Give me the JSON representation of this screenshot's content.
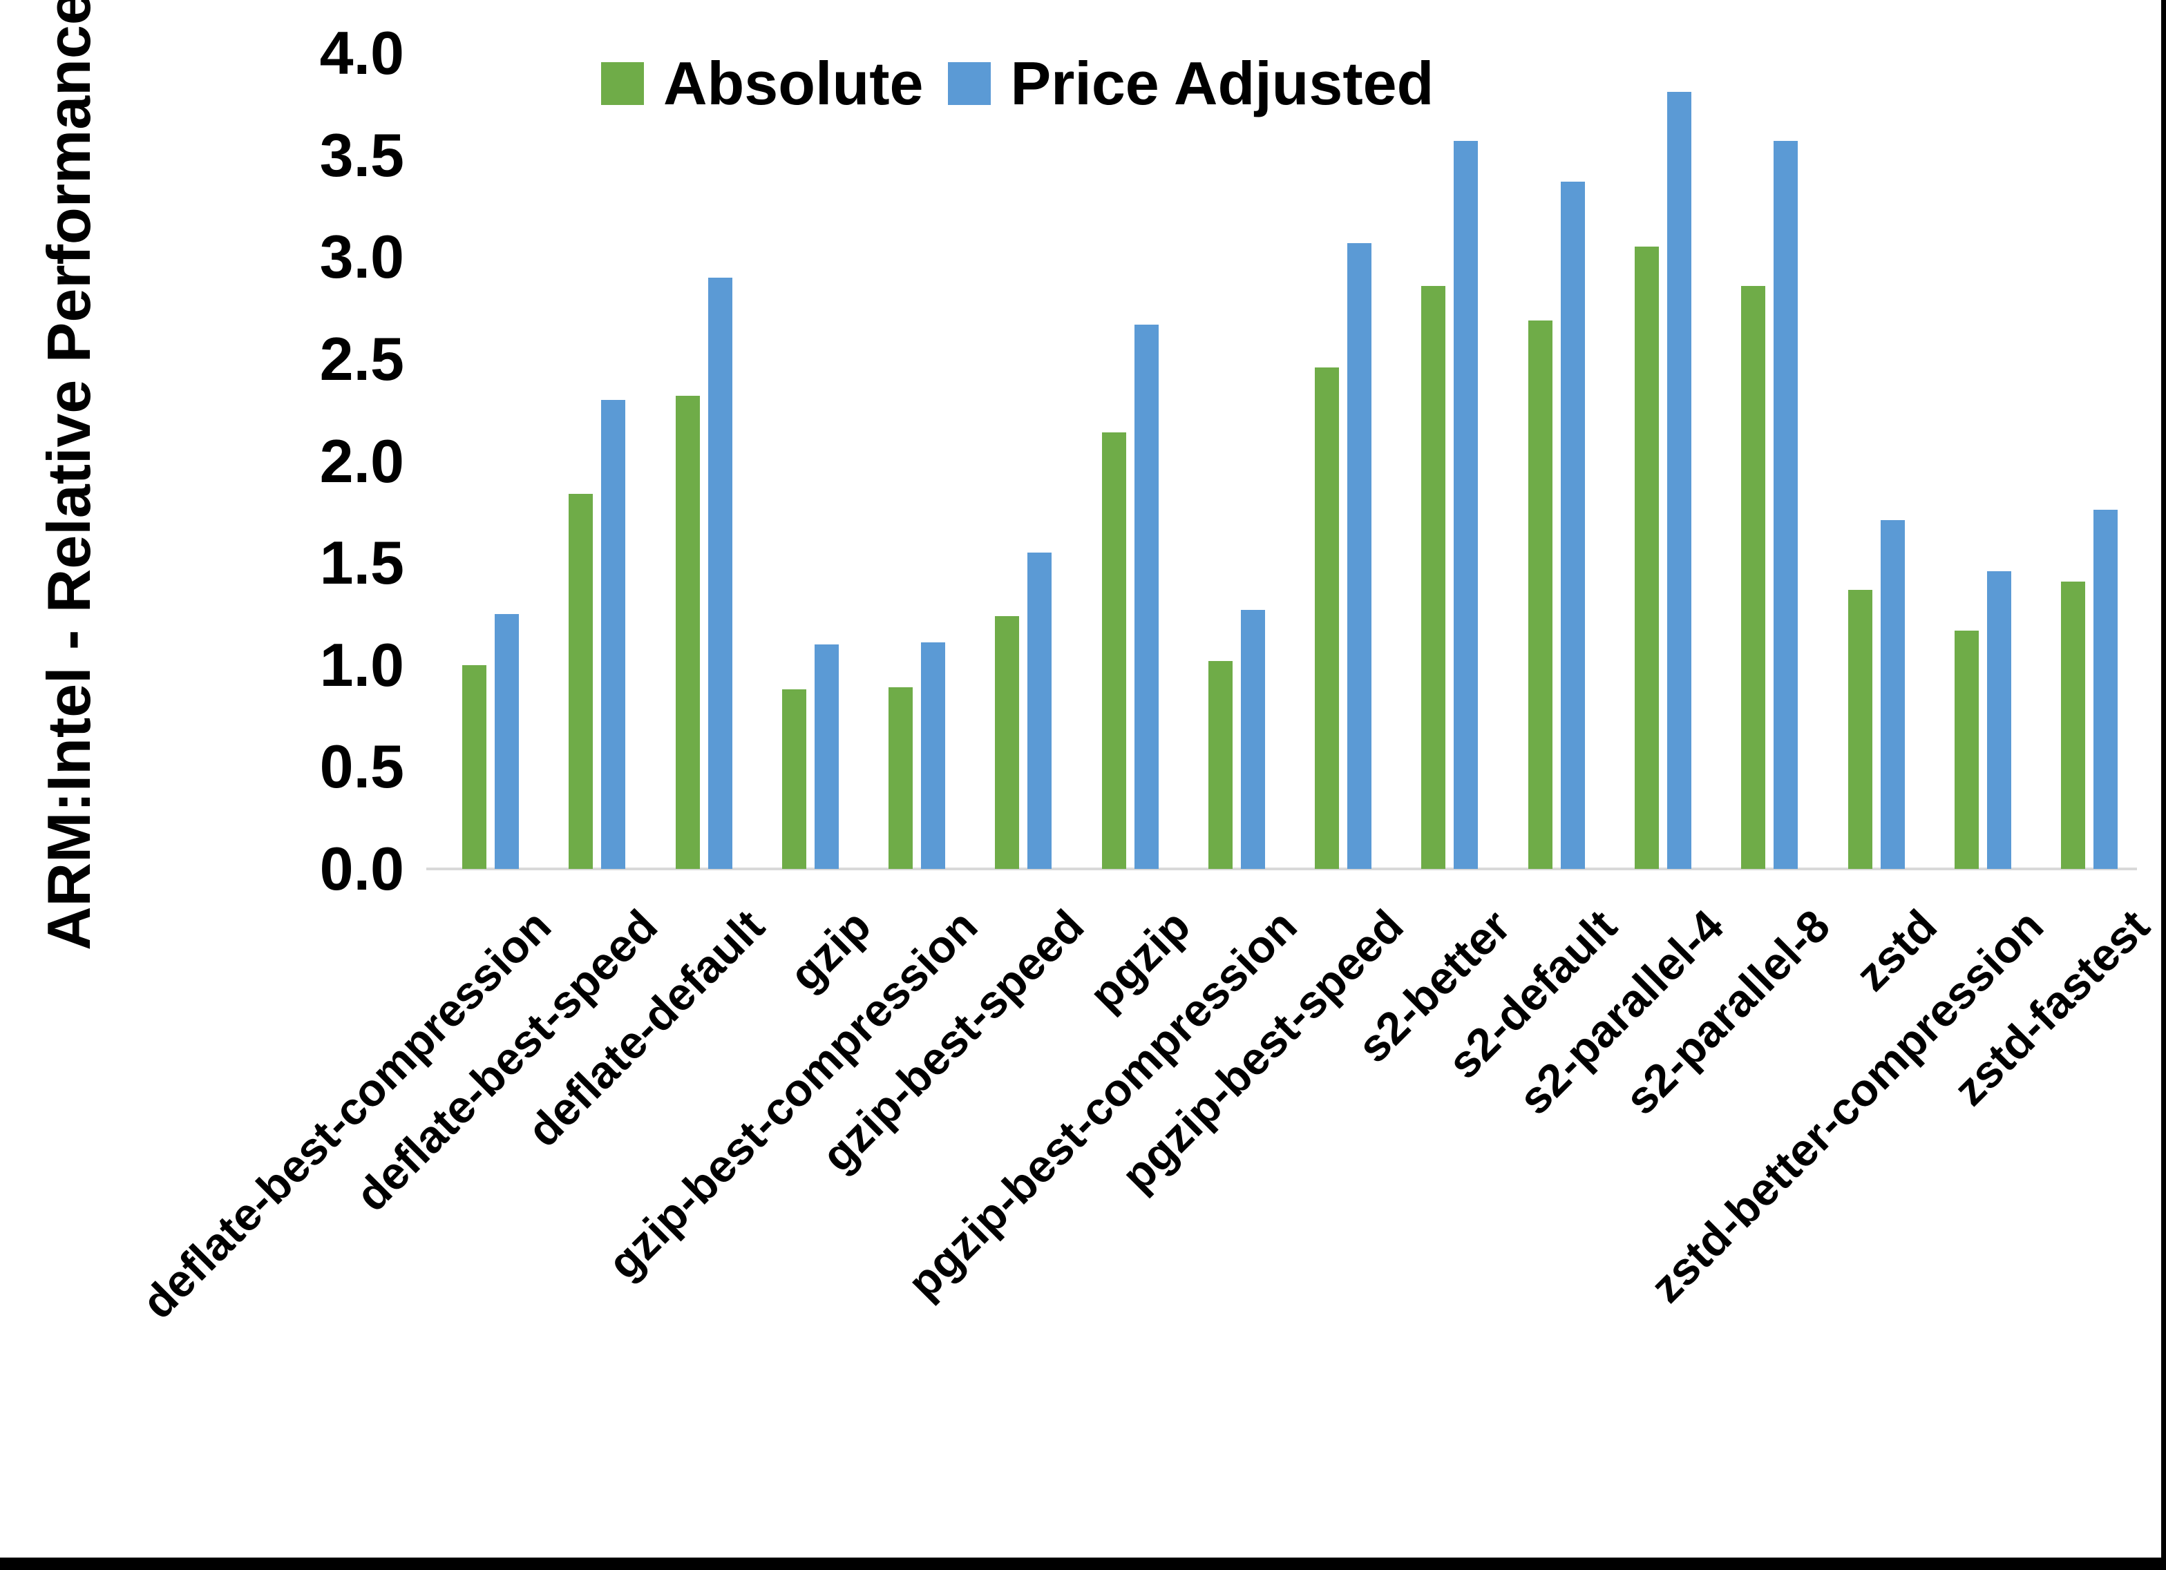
{
  "chart_data": {
    "type": "bar",
    "title": "",
    "ylabel": "ARM:Intel - Relative Performance",
    "xlabel": "",
    "ylim": [
      0.0,
      4.0
    ],
    "ytick_step": 0.5,
    "grid": false,
    "legend_position": "top-center",
    "categories": [
      "deflate-best-compression",
      "deflate-best-speed",
      "deflate-default",
      "gzip",
      "gzip-best-compression",
      "gzip-best-speed",
      "pgzip",
      "pgzip-best-compression",
      "pgzip-best-speed",
      "s2-better",
      "s2-default",
      "s2-parallel-4",
      "s2-parallel-8",
      "zstd",
      "zstd-better-compression",
      "zstd-fastest"
    ],
    "series": [
      {
        "name": "Absolute",
        "color": "#6FAC48",
        "values": [
          1.0,
          1.84,
          2.32,
          0.88,
          0.89,
          1.24,
          2.14,
          1.02,
          2.46,
          2.86,
          2.69,
          3.05,
          2.86,
          1.37,
          1.17,
          1.41
        ]
      },
      {
        "name": "Price Adjusted",
        "color": "#5B9AD5",
        "values": [
          1.25,
          2.3,
          2.9,
          1.1,
          1.11,
          1.55,
          2.67,
          1.27,
          3.07,
          3.57,
          3.37,
          3.81,
          3.57,
          1.71,
          1.46,
          1.76
        ]
      }
    ],
    "axis_line_color": "#d9d9d9",
    "tick_label_format": "one-decimal"
  }
}
